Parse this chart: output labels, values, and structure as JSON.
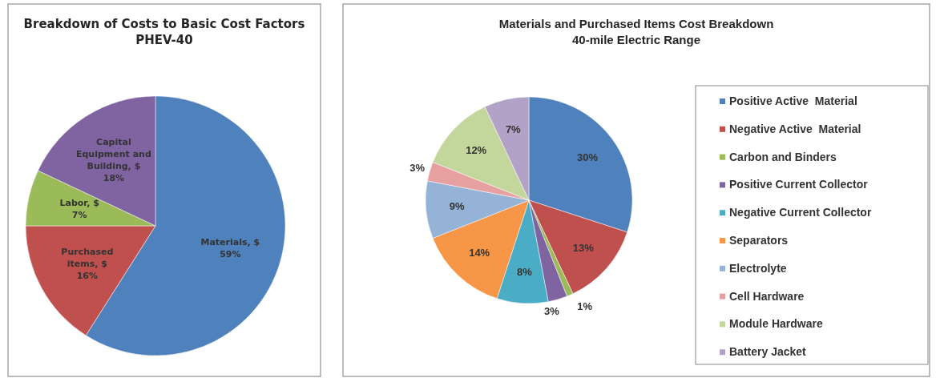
{
  "chart_data": [
    {
      "type": "pie",
      "title": "Breakdown of Costs to Basic Cost Factors",
      "subtitle": "PHEV-40",
      "categories": [
        "Materials, $",
        "Purchased items, $",
        "Labor, $",
        "Capital Equipment and Building, $"
      ],
      "values": [
        59,
        16,
        7,
        18
      ],
      "colors": [
        "#4f81bd",
        "#c0504d",
        "#9bbb59",
        "#8064a2"
      ],
      "value_labels": [
        "59%",
        "16%",
        "7%",
        "18%"
      ],
      "legend": false
    },
    {
      "type": "pie",
      "title": "Materials and Purchased Items Cost Breakdown",
      "subtitle": "40-mile Electric Range",
      "categories": [
        "Positive Active  Material",
        "Negative Active  Material",
        "Carbon and Binders",
        "Positive Current Collector",
        "Negative Current Collector",
        "Separators",
        "Electrolyte",
        "Cell Hardware",
        "Module Hardware",
        "Battery Jacket"
      ],
      "values": [
        30,
        13,
        1,
        3,
        8,
        14,
        9,
        3,
        12,
        7
      ],
      "colors": [
        "#4f81bd",
        "#c0504d",
        "#9bbb59",
        "#8064a2",
        "#4bacc6",
        "#f79646",
        "#95b3d7",
        "#e6a0a0",
        "#c3d69b",
        "#b3a2c7"
      ],
      "value_labels": [
        "30%",
        "13%",
        "1%",
        "3%",
        "8%",
        "14%",
        "9%",
        "3%",
        "12%",
        "7%"
      ],
      "legend": "right"
    }
  ]
}
